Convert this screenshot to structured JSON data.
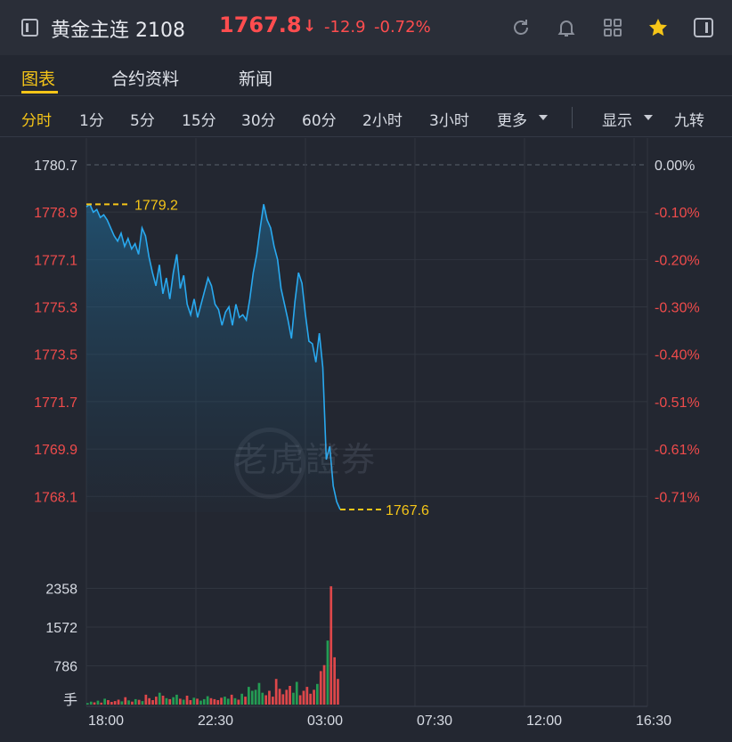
{
  "header": {
    "title": "黄金主连 2108",
    "price": "1767.8",
    "direction": "down",
    "change": "-12.9",
    "change_pct": "-0.72%",
    "icons": [
      "back-icon",
      "refresh-icon",
      "bell-icon",
      "grid-icon",
      "star-icon",
      "sidebar-icon"
    ],
    "star_color": "#f5c518"
  },
  "tabs": [
    {
      "label": "图表",
      "active": true
    },
    {
      "label": "合约资料",
      "active": false
    },
    {
      "label": "新闻",
      "active": false
    }
  ],
  "periods": [
    {
      "label": "分时",
      "active": true
    },
    {
      "label": "1分",
      "active": false
    },
    {
      "label": "5分",
      "active": false
    },
    {
      "label": "15分",
      "active": false
    },
    {
      "label": "30分",
      "active": false
    },
    {
      "label": "60分",
      "active": false
    },
    {
      "label": "2小时",
      "active": false
    },
    {
      "label": "3小时",
      "active": false
    },
    {
      "label": "更多",
      "active": false
    }
  ],
  "display_label": "显示",
  "nine_turn_label": "九转",
  "watermark": "老虎證券",
  "colors": {
    "price_line": "#29a9ef",
    "down": "#ff4d4f",
    "up": "#24b15a",
    "accent": "#f5c518",
    "axis_text": "#ef4b4b",
    "neutral_text": "#d7dbe3"
  },
  "chart_data": {
    "type": "line",
    "prev_close": 1780.7,
    "y_ticks_left": [
      "1780.7",
      "1778.9",
      "1777.1",
      "1775.3",
      "1773.5",
      "1771.7",
      "1769.9",
      "1768.1"
    ],
    "y_ticks_right": [
      "0.00%",
      "-0.10%",
      "-0.20%",
      "-0.30%",
      "-0.40%",
      "-0.51%",
      "-0.61%",
      "-0.71%"
    ],
    "ylim": [
      1767.5,
      1780.7
    ],
    "x_ticks": [
      "18:00",
      "22:30",
      "03:00",
      "07:30",
      "12:00",
      "16:30"
    ],
    "high_label": "1779.2",
    "low_label": "1767.6",
    "series": [
      {
        "values": [
          1779.1,
          1779.2,
          1778.9,
          1779.0,
          1778.7,
          1778.8,
          1778.6,
          1778.3,
          1778.0,
          1777.8,
          1778.1,
          1777.6,
          1777.9,
          1777.5,
          1777.7,
          1777.3,
          1778.3,
          1778.0,
          1777.2,
          1776.6,
          1776.1,
          1776.9,
          1775.8,
          1776.4,
          1775.6,
          1776.6,
          1777.3,
          1776.0,
          1776.5,
          1775.4,
          1775.0,
          1775.6,
          1774.9,
          1775.4,
          1775.9,
          1776.4,
          1776.1,
          1775.4,
          1775.2,
          1774.6,
          1775.1,
          1775.3,
          1774.6,
          1775.4,
          1774.9,
          1775.0,
          1774.8,
          1775.6,
          1776.6,
          1777.3,
          1778.3,
          1779.2,
          1778.6,
          1778.3,
          1777.6,
          1777.1,
          1776.0,
          1775.4,
          1774.8,
          1774.1,
          1775.5,
          1776.6,
          1776.2,
          1775.0,
          1774.0,
          1773.9,
          1773.2,
          1774.3,
          1773.0,
          1769.5,
          1770.0,
          1768.5,
          1767.9,
          1767.6
        ]
      }
    ],
    "volume": {
      "y_ticks": [
        "2358",
        "1572",
        "786"
      ],
      "unit_label": "手",
      "ylim": [
        0,
        3000
      ],
      "values": [
        30,
        60,
        45,
        80,
        40,
        120,
        90,
        55,
        70,
        100,
        65,
        150,
        85,
        60,
        110,
        95,
        70,
        200,
        130,
        90,
        160,
        240,
        180,
        130,
        110,
        150,
        200,
        120,
        100,
        180,
        90,
        140,
        120,
        80,
        110,
        170,
        130,
        110,
        90,
        140,
        160,
        120,
        200,
        130,
        100,
        220,
        160,
        360,
        280,
        300,
        440,
        240,
        190,
        280,
        160,
        520,
        320,
        210,
        300,
        380,
        240,
        460,
        190,
        280,
        360,
        220,
        300,
        420,
        680,
        800,
        1300,
        2400,
        960,
        520
      ]
    }
  }
}
